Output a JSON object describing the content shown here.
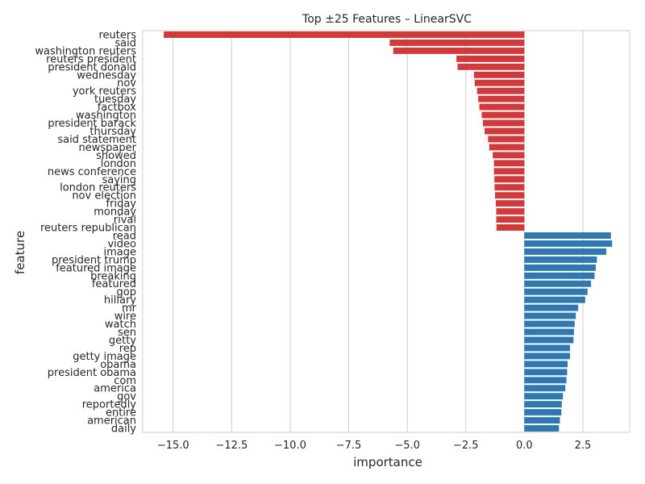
{
  "chart_data": {
    "type": "bar",
    "orientation": "horizontal",
    "title": "Top ±25 Features – LinearSVC",
    "xlabel": "importance",
    "ylabel": "feature",
    "xlim": [
      -16.3,
      4.5
    ],
    "xticks": [
      -15.0,
      -12.5,
      -10.0,
      -7.5,
      -5.0,
      -2.5,
      0.0,
      2.5
    ],
    "xtick_labels": [
      "−15.0",
      "−12.5",
      "−10.0",
      "−7.5",
      "−5.0",
      "−2.5",
      "0.0",
      "2.5"
    ],
    "grid": "vertical",
    "colors": {
      "negative": "#d03a3a",
      "positive": "#2f78b0"
    },
    "categories": [
      "reuters",
      "said",
      "washington reuters",
      "reuters president",
      "president donald",
      "wednesday",
      "nov",
      "york reuters",
      "tuesday",
      "factbox",
      "washington",
      "president barack",
      "thursday",
      "said statement",
      "newspaper",
      "showed",
      "london",
      "news conference",
      "saying",
      "london reuters",
      "nov election",
      "friday",
      "monday",
      "rival",
      "reuters republican",
      "read",
      "video",
      "image",
      "president trump",
      "featured image",
      "breaking",
      "featured",
      "gop",
      "hillary",
      "mr",
      "wire",
      "watch",
      "sen",
      "getty",
      "rep",
      "getty image",
      "obama",
      "president obama",
      "com",
      "america",
      "gov",
      "reportedly",
      "entire",
      "american",
      "daily"
    ],
    "values": [
      -15.4,
      -5.75,
      -5.6,
      -2.9,
      -2.85,
      -2.15,
      -2.12,
      -2.02,
      -1.97,
      -1.92,
      -1.82,
      -1.77,
      -1.7,
      -1.55,
      -1.5,
      -1.35,
      -1.3,
      -1.3,
      -1.28,
      -1.27,
      -1.25,
      -1.22,
      -1.2,
      -1.2,
      -1.19,
      3.7,
      3.75,
      3.5,
      3.1,
      3.05,
      3.0,
      2.85,
      2.7,
      2.6,
      2.3,
      2.2,
      2.15,
      2.12,
      2.1,
      1.95,
      1.95,
      1.85,
      1.83,
      1.8,
      1.75,
      1.65,
      1.6,
      1.58,
      1.52,
      1.48
    ]
  }
}
